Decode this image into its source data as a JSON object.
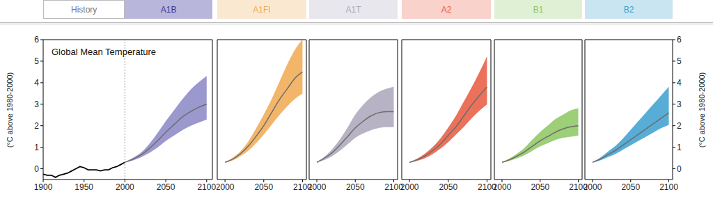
{
  "chart_data": [
    {
      "type": "line",
      "title": "History",
      "annotation": "Global Mean Temperature",
      "y_label": "(°C above 1980-2000)",
      "xlim": [
        1900,
        2107
      ],
      "xticks": [
        1900,
        1950,
        2000,
        2050,
        2100
      ],
      "ylim": [
        -0.5,
        6
      ],
      "yticks": [
        0,
        1,
        2,
        3,
        4,
        5,
        6
      ],
      "color": "#000000",
      "x": [
        1900,
        1905,
        1910,
        1915,
        1920,
        1925,
        1930,
        1935,
        1940,
        1945,
        1950,
        1955,
        1960,
        1965,
        1970,
        1975,
        1980,
        1985,
        1990,
        1995,
        2000
      ],
      "values": [
        -0.25,
        -0.3,
        -0.3,
        -0.4,
        -0.3,
        -0.25,
        -0.2,
        -0.1,
        0.0,
        0.1,
        0.05,
        -0.05,
        -0.05,
        -0.05,
        -0.1,
        -0.05,
        -0.05,
        0.05,
        0.1,
        0.2,
        0.3
      ],
      "scenario": {
        "type": "area",
        "title": "A1B",
        "color": "#8a86c4",
        "x": [
          2000,
          2010,
          2020,
          2030,
          2040,
          2050,
          2060,
          2070,
          2080,
          2090,
          2100
        ],
        "values": [
          0.3,
          0.45,
          0.65,
          0.95,
          1.3,
          1.7,
          2.05,
          2.4,
          2.65,
          2.85,
          3.0
        ],
        "lower": [
          0.3,
          0.4,
          0.55,
          0.75,
          1.0,
          1.3,
          1.55,
          1.8,
          2.0,
          2.15,
          2.3
        ],
        "upper": [
          0.3,
          0.5,
          0.75,
          1.15,
          1.65,
          2.2,
          2.7,
          3.2,
          3.65,
          4.0,
          4.3
        ]
      }
    },
    {
      "type": "area",
      "title": "A1FI",
      "color": "#f0a850",
      "xlim": [
        1990,
        2105
      ],
      "xticks": [
        2000,
        2050,
        2100
      ],
      "ylim": [
        -0.5,
        6
      ],
      "yticks": [
        0,
        1,
        2,
        3,
        4,
        5,
        6
      ],
      "x": [
        2000,
        2010,
        2020,
        2030,
        2040,
        2050,
        2060,
        2070,
        2080,
        2090,
        2100
      ],
      "values": [
        0.3,
        0.45,
        0.7,
        1.05,
        1.5,
        2.0,
        2.6,
        3.2,
        3.7,
        4.2,
        4.5
      ],
      "lower": [
        0.3,
        0.4,
        0.6,
        0.85,
        1.2,
        1.6,
        2.05,
        2.5,
        2.9,
        3.25,
        3.5
      ],
      "upper": [
        0.3,
        0.5,
        0.8,
        1.25,
        1.85,
        2.5,
        3.2,
        4.0,
        4.8,
        5.5,
        6.0
      ]
    },
    {
      "type": "area",
      "title": "A1T",
      "color": "#aaa4ba",
      "xlim": [
        1990,
        2105
      ],
      "xticks": [
        2000,
        2050,
        2100
      ],
      "ylim": [
        -0.5,
        6
      ],
      "yticks": [
        0,
        1,
        2,
        3,
        4,
        5,
        6
      ],
      "x": [
        2000,
        2010,
        2020,
        2030,
        2040,
        2050,
        2060,
        2070,
        2080,
        2090,
        2100
      ],
      "values": [
        0.3,
        0.5,
        0.75,
        1.1,
        1.5,
        1.9,
        2.2,
        2.45,
        2.6,
        2.65,
        2.65
      ],
      "lower": [
        0.3,
        0.42,
        0.6,
        0.85,
        1.15,
        1.45,
        1.65,
        1.8,
        1.9,
        1.95,
        1.95
      ],
      "upper": [
        0.3,
        0.55,
        0.9,
        1.35,
        1.9,
        2.5,
        2.95,
        3.3,
        3.55,
        3.7,
        3.8
      ]
    },
    {
      "type": "area",
      "title": "A2",
      "color": "#e8583e",
      "xlim": [
        1990,
        2105
      ],
      "xticks": [
        2000,
        2050,
        2100
      ],
      "ylim": [
        -0.5,
        6
      ],
      "yticks": [
        0,
        1,
        2,
        3,
        4,
        5,
        6
      ],
      "x": [
        2000,
        2010,
        2020,
        2030,
        2040,
        2050,
        2060,
        2070,
        2080,
        2090,
        2100
      ],
      "values": [
        0.3,
        0.42,
        0.6,
        0.85,
        1.15,
        1.55,
        1.95,
        2.45,
        2.95,
        3.4,
        3.8
      ],
      "lower": [
        0.3,
        0.38,
        0.5,
        0.7,
        0.95,
        1.25,
        1.6,
        1.95,
        2.35,
        2.7,
        3.0
      ],
      "upper": [
        0.3,
        0.46,
        0.7,
        1.0,
        1.4,
        1.9,
        2.45,
        3.1,
        3.75,
        4.45,
        5.2
      ]
    },
    {
      "type": "area",
      "title": "B1",
      "color": "#8cc660",
      "xlim": [
        1990,
        2105
      ],
      "xticks": [
        2000,
        2050,
        2100
      ],
      "ylim": [
        -0.5,
        6
      ],
      "yticks": [
        0,
        1,
        2,
        3,
        4,
        5,
        6
      ],
      "x": [
        2000,
        2010,
        2020,
        2030,
        2040,
        2050,
        2060,
        2070,
        2080,
        2090,
        2100
      ],
      "values": [
        0.3,
        0.42,
        0.6,
        0.8,
        1.05,
        1.3,
        1.5,
        1.7,
        1.85,
        1.95,
        2.0
      ],
      "lower": [
        0.3,
        0.38,
        0.5,
        0.65,
        0.85,
        1.05,
        1.2,
        1.35,
        1.45,
        1.5,
        1.55
      ],
      "upper": [
        0.3,
        0.47,
        0.7,
        0.98,
        1.35,
        1.7,
        2.0,
        2.3,
        2.5,
        2.7,
        2.8
      ]
    },
    {
      "type": "area",
      "title": "B2",
      "color": "#3a9fcf",
      "y_label": "(°C above 1980-2000)",
      "xlim": [
        1990,
        2105
      ],
      "xticks": [
        2000,
        2050,
        2100
      ],
      "ylim": [
        -0.5,
        6
      ],
      "yticks": [
        0,
        1,
        2,
        3,
        4,
        5,
        6
      ],
      "x": [
        2000,
        2010,
        2020,
        2030,
        2040,
        2050,
        2060,
        2070,
        2080,
        2090,
        2100
      ],
      "values": [
        0.3,
        0.45,
        0.65,
        0.85,
        1.1,
        1.35,
        1.6,
        1.85,
        2.1,
        2.35,
        2.6
      ],
      "lower": [
        0.3,
        0.4,
        0.55,
        0.7,
        0.9,
        1.1,
        1.3,
        1.5,
        1.7,
        1.9,
        2.05
      ],
      "upper": [
        0.3,
        0.5,
        0.78,
        1.05,
        1.4,
        1.8,
        2.2,
        2.6,
        3.0,
        3.4,
        3.8
      ]
    }
  ]
}
